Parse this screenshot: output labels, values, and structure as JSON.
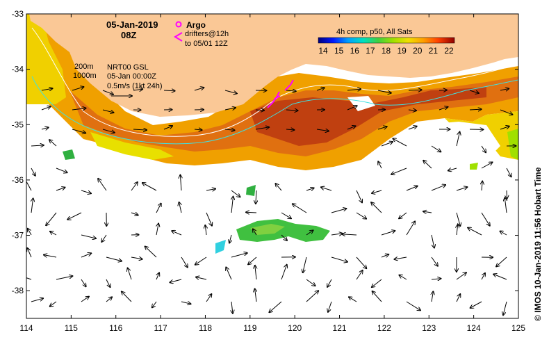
{
  "map": {
    "date": "05-Jan-2019",
    "time": "08Z",
    "legend_argo": "Argo",
    "legend_drifters_line1": "drifters@12h",
    "legend_drifters_line2": "to 05/01 12Z",
    "scale_200m": "200m",
    "scale_1000m": "1000m",
    "product_line1": "NRT00 GSL",
    "product_line2": "05-Jan 00:00Z",
    "product_line3": "0.5m/s (1kt 24h)",
    "colorbar_title": "4h comp, p50, All Sats",
    "colorbar_ticks": [
      "14",
      "15",
      "16",
      "17",
      "18",
      "19",
      "20",
      "21",
      "22"
    ],
    "credit": "© IMOS 10-Jan-2019 11:56 Hobart Time",
    "x_ticks": [
      "114",
      "115",
      "116",
      "117",
      "118",
      "119",
      "120",
      "121",
      "122",
      "123",
      "124",
      "125"
    ],
    "y_ticks": [
      "-33",
      "-34",
      "-35",
      "-36",
      "-37",
      "-38"
    ],
    "lon_range": [
      114,
      125
    ],
    "lat_range": [
      -33,
      -38.5
    ],
    "colors": {
      "land": "#fac896",
      "contour_200m": "#ffffff",
      "contour_1000m": "#40e0e0",
      "argo": "#ff00ff",
      "drifter": "#ff00ff"
    },
    "colorbar_colors": [
      "#00007f",
      "#0019ff",
      "#00a0ff",
      "#00e0c0",
      "#40d040",
      "#a0e000",
      "#f0e000",
      "#ffa000",
      "#ff4000",
      "#900000"
    ]
  }
}
